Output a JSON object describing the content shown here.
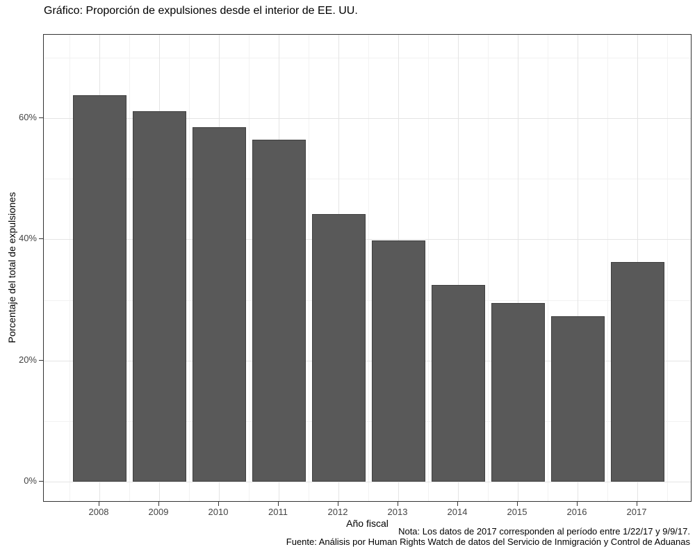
{
  "chart_data": {
    "type": "bar",
    "title": "Gráfico: Proporción de expulsiones desde el interior de EE. UU.",
    "xlabel": "Año fiscal",
    "ylabel": "Porcentaje del total de expulsiones",
    "note": "Nota: Los datos de 2017 corresponden al período entre 1/22/17 y 9/9/17.",
    "source": "Fuente: Análisis por Human Rights Watch de datos del Servicio de Inmigración y Control de Aduanas",
    "categories": [
      "2008",
      "2009",
      "2010",
      "2011",
      "2012",
      "2013",
      "2014",
      "2015",
      "2016",
      "2017"
    ],
    "values": [
      63.8,
      61.2,
      58.5,
      56.5,
      44.2,
      39.8,
      32.5,
      29.5,
      27.3,
      36.3
    ],
    "unit": "%",
    "ylim": [
      0,
      70
    ],
    "y_major_ticks": [
      0,
      20,
      40,
      60
    ],
    "y_minor_ticks": [
      10,
      30,
      50,
      70
    ],
    "y_tick_labels": [
      "0%",
      "20%",
      "40%",
      "60%"
    ],
    "grid": true,
    "legend": "none",
    "colors": {
      "bar_fill": "#595959",
      "bar_stroke": "#3f3f3f",
      "grid_major": "#e4e4e4",
      "grid_minor": "#f2f2f2",
      "panel_border": "#333333",
      "axis_tick": "#333333",
      "tick_label": "#444444",
      "text": "#000000",
      "background": "#ffffff"
    }
  }
}
